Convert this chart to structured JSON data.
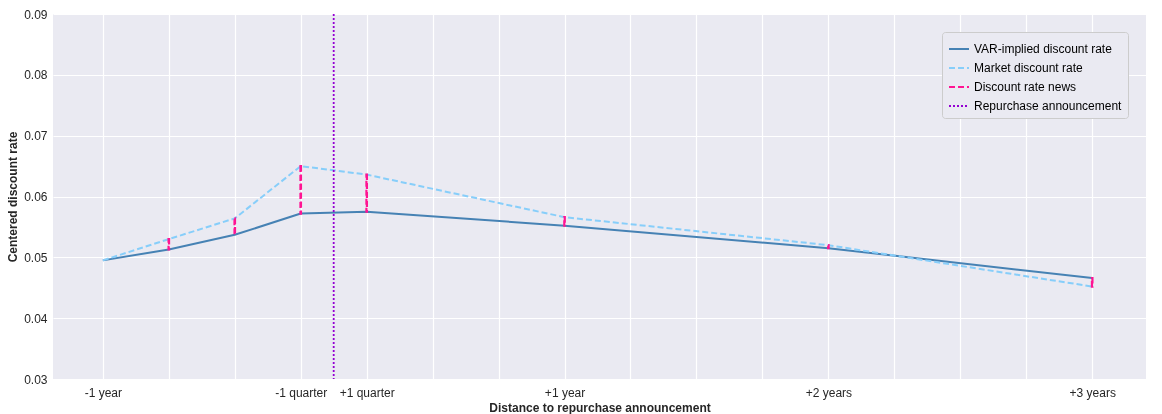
{
  "chart_data": {
    "type": "line",
    "xlabel": "Distance to repurchase announcement",
    "ylabel": "Centered discount rate",
    "categories": [
      "-1 year",
      null,
      null,
      "-1 quarter",
      "+1 quarter",
      null,
      null,
      "+1 year",
      null,
      null,
      null,
      "+2 years",
      null,
      null,
      null,
      "+3 years"
    ],
    "ylim": [
      0.03,
      0.09
    ],
    "yticks": [
      0.03,
      0.04,
      0.05,
      0.06,
      0.07,
      0.08,
      0.09
    ],
    "series": [
      {
        "name": "VAR-implied discount rate",
        "color": "#4682b4",
        "line_style": "solid",
        "values": [
          0.0495,
          0.0513,
          0.0537,
          0.0572,
          0.0575,
          null,
          null,
          0.0552,
          null,
          null,
          null,
          0.0515,
          null,
          null,
          null,
          0.0466
        ]
      },
      {
        "name": "Market discount rate",
        "color": "#87cefa",
        "line_style": "dashed",
        "values": [
          0.0495,
          0.053,
          0.0564,
          0.065,
          0.0636,
          null,
          null,
          0.0566,
          null,
          null,
          null,
          0.052,
          null,
          null,
          null,
          0.0452
        ]
      },
      {
        "name": "Discount rate news",
        "type": "bar",
        "color": "#ff1493",
        "line_style": "dashed",
        "base": [
          null,
          0.0513,
          0.0537,
          0.0572,
          0.0575,
          null,
          null,
          0.0552,
          null,
          null,
          null,
          0.0515,
          null,
          null,
          null,
          0.0466
        ],
        "values": [
          null,
          0.0017,
          0.0027,
          0.0078,
          0.0061,
          null,
          null,
          0.0014,
          null,
          null,
          null,
          0.0005,
          null,
          null,
          null,
          -0.0014
        ]
      }
    ],
    "annotations": [
      "Repurchase announcement"
    ],
    "grid": true,
    "legend": "top right"
  }
}
